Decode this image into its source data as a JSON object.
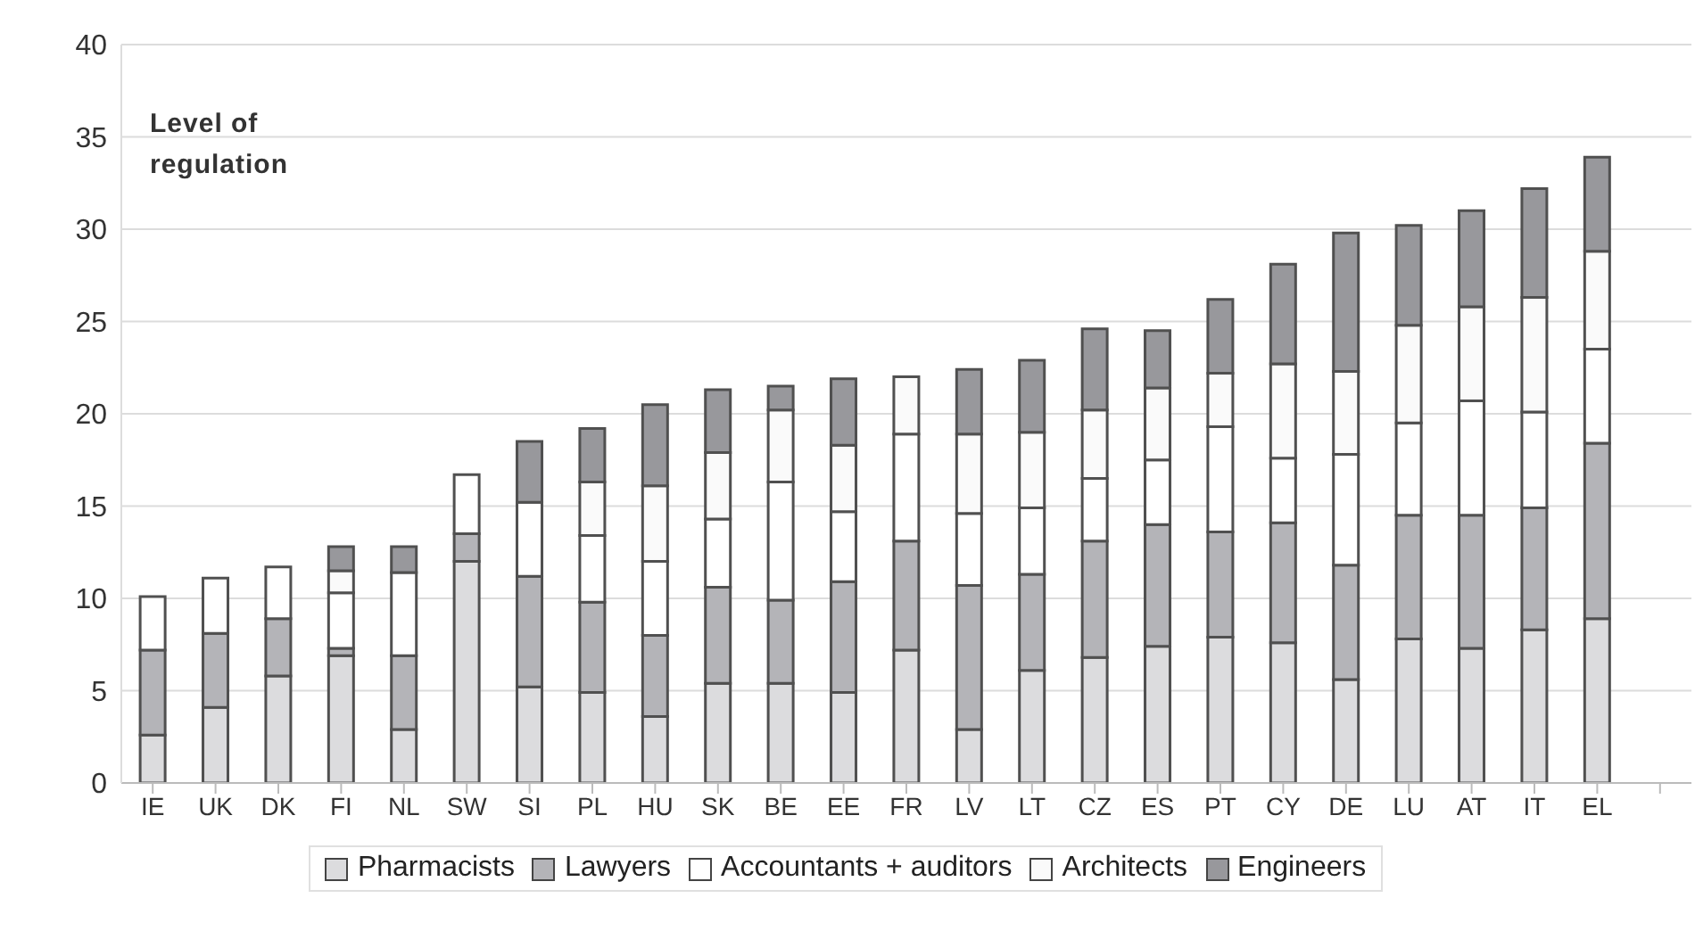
{
  "chart_data": {
    "type": "bar",
    "stacked": true,
    "annotations": [
      "Level of regulation"
    ],
    "categories": [
      "IE",
      "UK",
      "DK",
      "FI",
      "NL",
      "SW",
      "SI",
      "PL",
      "HU",
      "SK",
      "BE",
      "EE",
      "FR",
      "LV",
      "LT",
      "CZ",
      "ES",
      "PT",
      "CY",
      "DE",
      "LU",
      "AT",
      "IT",
      "EL",
      null
    ],
    "series": [
      {
        "name": "Pharmacists",
        "color": "#dcdcde",
        "values": [
          2.6,
          4.1,
          5.8,
          6.9,
          2.9,
          12,
          5.2,
          4.9,
          3.6,
          5.4,
          5.4,
          4.9,
          7.2,
          2.9,
          6.1,
          6.8,
          7.4,
          7.9,
          7.6,
          5.6,
          7.8,
          7.3,
          8.3,
          8.9,
          null
        ]
      },
      {
        "name": "Lawyers",
        "color": "#b4b4b8",
        "values": [
          4.6,
          4.0,
          3.1,
          0.4,
          4.0,
          1.5,
          6.0,
          4.9,
          4.4,
          5.2,
          4.5,
          6.0,
          5.9,
          7.8,
          5.2,
          6.3,
          6.6,
          5.7,
          6.5,
          6.2,
          6.7,
          7.2,
          6.6,
          9.5,
          null
        ]
      },
      {
        "name": "Accountants + auditors",
        "color": "#ffffff",
        "values": [
          2.9,
          3.0,
          2.8,
          3.0,
          4.5,
          3.2,
          4.0,
          3.6,
          4.0,
          3.7,
          6.4,
          3.8,
          5.8,
          3.9,
          3.6,
          3.4,
          3.5,
          5.7,
          3.5,
          6.0,
          5.0,
          6.2,
          5.2,
          5.1,
          null
        ]
      },
      {
        "name": "Architects",
        "color": "#fafafa",
        "values": [
          0,
          0,
          0,
          1.2,
          0,
          0,
          0,
          2.9,
          4.1,
          3.6,
          3.9,
          3.6,
          3.1,
          4.3,
          4.1,
          3.7,
          3.9,
          2.9,
          5.1,
          4.5,
          5.3,
          5.1,
          6.2,
          5.3,
          null
        ]
      },
      {
        "name": "Engineers",
        "color": "#98989c",
        "values": [
          0,
          0,
          0,
          1.3,
          1.4,
          0,
          3.3,
          2.9,
          4.4,
          3.4,
          1.3,
          3.6,
          0,
          3.5,
          3.9,
          4.4,
          3.1,
          4.0,
          5.4,
          7.5,
          5.4,
          5.2,
          5.9,
          5.1,
          null
        ]
      }
    ],
    "ylim": [
      0,
      40
    ],
    "yticks": [
      0,
      5,
      10,
      15,
      20,
      25,
      30,
      35,
      40
    ],
    "grid": "y",
    "legend": "bottom"
  }
}
